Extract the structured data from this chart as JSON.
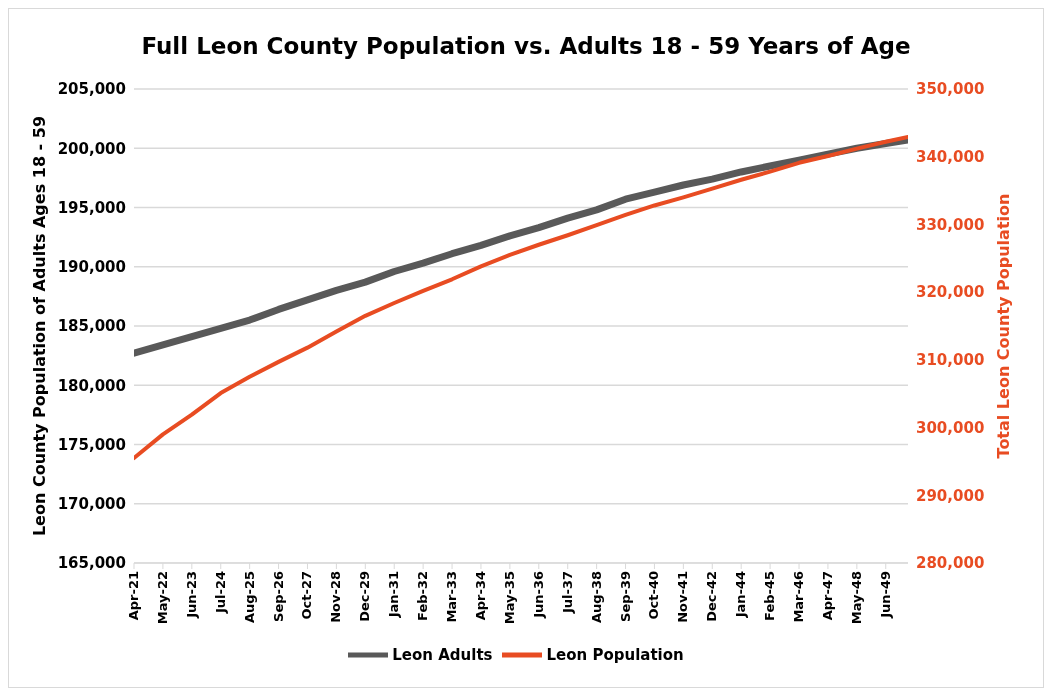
{
  "chart_data": {
    "type": "line",
    "title": "Full Leon County Population vs. Adults 18 - 59 Years of Age",
    "ylabel": "Leon County Population of Adults Ages 18 - 59",
    "y2label": "Total Leon County Population",
    "x": [
      "2021-04",
      "2022-05",
      "2023-06",
      "2024-07",
      "2025-08",
      "2026-09",
      "2027-10",
      "2028-11",
      "2029-12",
      "2031-01",
      "2032-02",
      "2033-03",
      "2034-04",
      "2035-05",
      "2036-06",
      "2037-07",
      "2038-08",
      "2039-09",
      "2040-10",
      "2041-11",
      "2042-12",
      "2044-01",
      "2045-02",
      "2046-03",
      "2047-04",
      "2048-05",
      "2049-06",
      "2050-04"
    ],
    "series": [
      {
        "name": "Leon Adults",
        "color": "#595959",
        "values": [
          182700,
          183400,
          184100,
          184800,
          185500,
          186400,
          187200,
          188000,
          188700,
          189600,
          190300,
          191100,
          191800,
          192600,
          193300,
          194100,
          194800,
          195700,
          196300,
          196900,
          197400,
          198000,
          198500,
          199000,
          199500,
          200000,
          200400,
          200700
        ]
      },
      {
        "name": "Leon Population",
        "color": "#e84c22",
        "axis": "y2",
        "values": [
          295500,
          299000,
          301900,
          305100,
          307500,
          309700,
          311800,
          314200,
          316500,
          318400,
          320200,
          321900,
          323800,
          325500,
          327000,
          328400,
          329900,
          331400,
          332800,
          334000,
          335300,
          336600,
          337800,
          339100,
          340100,
          341200,
          342200,
          342900
        ]
      }
    ],
    "xlim": [
      "2021-04",
      "2050-04"
    ],
    "xticks": [
      {
        "value": "2021-04",
        "label": "Apr-21"
      },
      {
        "value": "2022-05",
        "label": "May-22"
      },
      {
        "value": "2023-06",
        "label": "Jun-23"
      },
      {
        "value": "2024-07",
        "label": "Jul-24"
      },
      {
        "value": "2025-08",
        "label": "Aug-25"
      },
      {
        "value": "2026-09",
        "label": "Sep-26"
      },
      {
        "value": "2027-10",
        "label": "Oct-27"
      },
      {
        "value": "2028-11",
        "label": "Nov-28"
      },
      {
        "value": "2029-12",
        "label": "Dec-29"
      },
      {
        "value": "2031-01",
        "label": "Jan-31"
      },
      {
        "value": "2032-02",
        "label": "Feb-32"
      },
      {
        "value": "2033-03",
        "label": "Mar-33"
      },
      {
        "value": "2034-04",
        "label": "Apr-34"
      },
      {
        "value": "2035-05",
        "label": "May-35"
      },
      {
        "value": "2036-06",
        "label": "Jun-36"
      },
      {
        "value": "2037-07",
        "label": "Jul-37"
      },
      {
        "value": "2038-08",
        "label": "Aug-38"
      },
      {
        "value": "2039-09",
        "label": "Sep-39"
      },
      {
        "value": "2040-10",
        "label": "Oct-40"
      },
      {
        "value": "2041-11",
        "label": "Nov-41"
      },
      {
        "value": "2042-12",
        "label": "Dec-42"
      },
      {
        "value": "2044-01",
        "label": "Jan-44"
      },
      {
        "value": "2045-02",
        "label": "Feb-45"
      },
      {
        "value": "2046-03",
        "label": "Mar-46"
      },
      {
        "value": "2047-04",
        "label": "Apr-47"
      },
      {
        "value": "2048-05",
        "label": "May-48"
      },
      {
        "value": "2049-06",
        "label": "Jun-49"
      }
    ],
    "ylim": [
      165000,
      205000
    ],
    "yticks": [
      {
        "value": 165000,
        "label": "165,000"
      },
      {
        "value": 170000,
        "label": "170,000"
      },
      {
        "value": 175000,
        "label": "175,000"
      },
      {
        "value": 180000,
        "label": "180,000"
      },
      {
        "value": 185000,
        "label": "185,000"
      },
      {
        "value": 190000,
        "label": "190,000"
      },
      {
        "value": 195000,
        "label": "195,000"
      },
      {
        "value": 200000,
        "label": "200,000"
      },
      {
        "value": 205000,
        "label": "205,000"
      }
    ],
    "y2lim": [
      280000,
      350000
    ],
    "y2ticks": [
      {
        "value": 280000,
        "label": "280,000"
      },
      {
        "value": 290000,
        "label": "290,000"
      },
      {
        "value": 300000,
        "label": "300,000"
      },
      {
        "value": 310000,
        "label": "310,000"
      },
      {
        "value": 320000,
        "label": "320,000"
      },
      {
        "value": 330000,
        "label": "330,000"
      },
      {
        "value": 340000,
        "label": "340,000"
      },
      {
        "value": 350000,
        "label": "350,000"
      }
    ],
    "grid": "y",
    "legend": "bottom",
    "marker": "none",
    "line_style": "solid"
  }
}
